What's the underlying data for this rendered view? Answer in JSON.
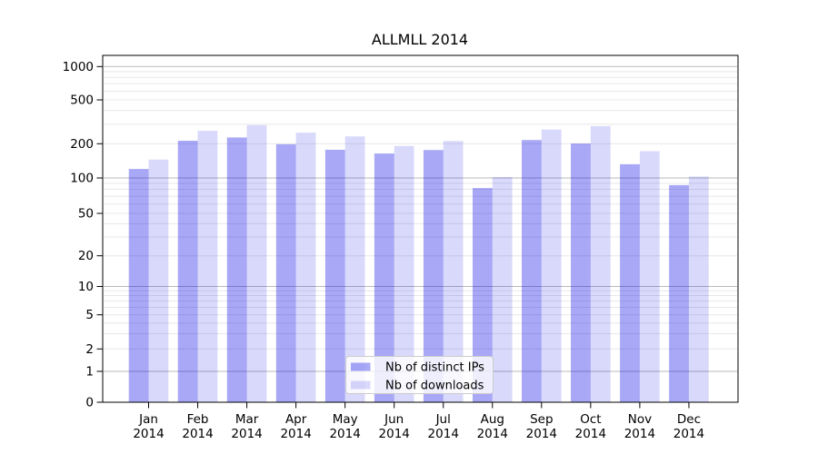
{
  "chart_data": {
    "type": "bar",
    "title": "ALLMLL 2014",
    "categories": [
      "Jan",
      "Feb",
      "Mar",
      "Apr",
      "May",
      "Jun",
      "Jul",
      "Aug",
      "Sep",
      "Oct",
      "Nov",
      "Dec"
    ],
    "category_year": "2014",
    "series": [
      {
        "name": "Nb of distinct IPs",
        "color": "rgba(0,0,230,0.34)",
        "values": [
          120,
          213,
          228,
          198,
          177,
          164,
          176,
          82,
          216,
          201,
          132,
          87
        ]
      },
      {
        "name": "Nb of downloads",
        "color": "rgba(0,0,230,0.15)",
        "values": [
          145,
          262,
          295,
          252,
          233,
          191,
          212,
          102,
          269,
          289,
          172,
          103
        ]
      }
    ],
    "yscale": "symlog",
    "yticks": [
      0,
      1,
      2,
      5,
      10,
      20,
      50,
      100,
      200,
      500,
      1000
    ],
    "ylim": [
      0,
      1260
    ],
    "grid": "horizontal, log major and minor",
    "legend": {
      "position": "lower-center",
      "labels": [
        "Nb of distinct IPs",
        "Nb of downloads"
      ]
    }
  },
  "colors": {
    "bar_distinct_ips": "rgba(0,0,230,0.34)",
    "bar_downloads": "rgba(0,0,230,0.15)",
    "grid_major": "#b9b9b9",
    "grid_minor": "#e8e8e8",
    "axis_spine": "#000000",
    "legend_border": "#cccccc",
    "background": "#ffffff"
  }
}
